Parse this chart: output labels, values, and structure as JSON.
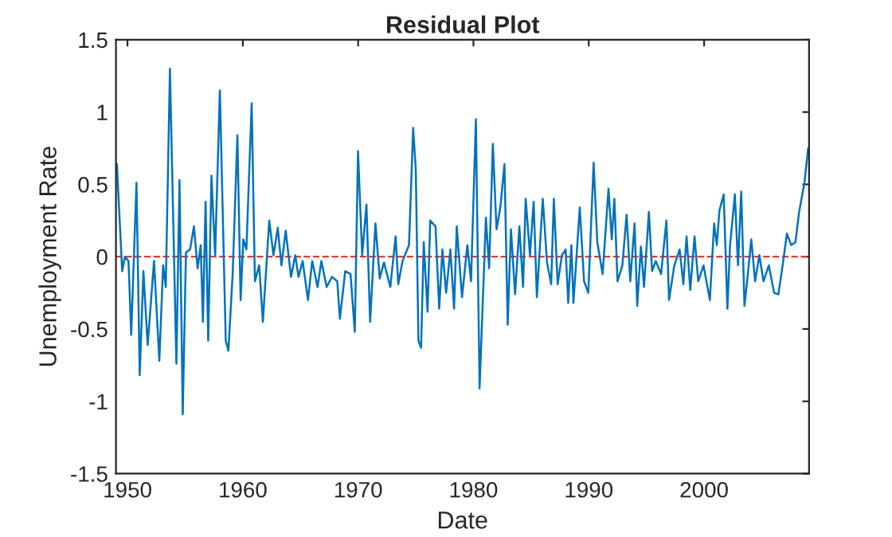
{
  "chart_data": {
    "type": "line",
    "title": "Residual Plot",
    "xlabel": "Date",
    "ylabel": "Unemployment Rate",
    "xlim": [
      1949,
      2009.1
    ],
    "xticks": [
      1950,
      1960,
      1970,
      1980,
      1990,
      2000
    ],
    "ylim": [
      -1.5,
      1.5
    ],
    "yticks": [
      -1.5,
      -1,
      -0.5,
      0,
      0.5,
      1,
      1.5
    ],
    "grid": false,
    "marker": "none",
    "line_style": "solid",
    "ref_lines": [
      {
        "axis": "y",
        "value": 0,
        "color": "#e03c31",
        "line_style": "dashed"
      }
    ],
    "series": [
      {
        "color": "#0072bd",
        "x": [
          1949.08,
          1949.54,
          1949.77,
          1950.09,
          1950.32,
          1950.78,
          1951.06,
          1951.38,
          1951.75,
          1952.3,
          1952.76,
          1953.09,
          1953.32,
          1953.68,
          1954.24,
          1954.51,
          1954.79,
          1955.07,
          1955.43,
          1955.76,
          1956.08,
          1956.35,
          1956.54,
          1956.77,
          1957.0,
          1957.28,
          1957.6,
          1958.01,
          1958.52,
          1958.75,
          1959.12,
          1959.53,
          1959.81,
          1960.04,
          1960.31,
          1960.77,
          1961.05,
          1961.42,
          1961.74,
          1962.29,
          1962.66,
          1963.03,
          1963.35,
          1963.72,
          1964.18,
          1964.55,
          1964.83,
          1965.19,
          1965.65,
          1966.02,
          1966.48,
          1966.81,
          1967.27,
          1967.73,
          1968.19,
          1968.42,
          1968.88,
          1969.34,
          1969.71,
          1969.99,
          1970.35,
          1970.72,
          1971.04,
          1971.5,
          1971.87,
          1972.24,
          1972.79,
          1973.25,
          1973.48,
          1973.85,
          1974.41,
          1974.77,
          1975.0,
          1975.23,
          1975.46,
          1975.69,
          1976.02,
          1976.25,
          1976.71,
          1977.03,
          1977.31,
          1977.63,
          1978.0,
          1978.32,
          1978.55,
          1979.01,
          1979.47,
          1979.79,
          1980.21,
          1980.53,
          1981.08,
          1981.36,
          1981.68,
          1982.0,
          1982.33,
          1982.69,
          1982.97,
          1983.25,
          1983.61,
          1983.98,
          1984.3,
          1984.53,
          1984.9,
          1985.22,
          1985.5,
          1986.01,
          1986.38,
          1986.74,
          1986.97,
          1987.3,
          1987.67,
          1987.99,
          1988.22,
          1988.49,
          1988.67,
          1989.22,
          1989.59,
          1989.96,
          1990.42,
          1990.74,
          1991.2,
          1991.71,
          1991.99,
          1992.22,
          1992.49,
          1992.91,
          1993.28,
          1993.6,
          1993.97,
          1994.2,
          1994.52,
          1994.79,
          1995.21,
          1995.49,
          1995.81,
          1996.27,
          1996.73,
          1996.96,
          1997.42,
          1997.88,
          1998.2,
          1998.48,
          1998.8,
          1999.17,
          1999.49,
          1999.95,
          2000.5,
          2000.87,
          2001.1,
          2001.33,
          2001.7,
          2002.02,
          2002.25,
          2002.67,
          2002.94,
          2003.22,
          2003.5,
          2003.77,
          2004.09,
          2004.42,
          2004.79,
          2005.15,
          2005.61,
          2006.07,
          2006.44,
          2006.81,
          2007.18,
          2007.55,
          2007.92,
          2008.24,
          2008.7,
          2009.02
        ],
        "values": [
          0.64,
          -0.1,
          0,
          -0.03,
          -0.54,
          0.51,
          -0.82,
          -0.1,
          -0.61,
          -0.03,
          -0.72,
          -0.06,
          -0.21,
          1.3,
          -0.74,
          0.53,
          -1.09,
          0.03,
          0.05,
          0.21,
          -0.08,
          0.08,
          -0.45,
          0.38,
          -0.58,
          0.56,
          0.01,
          1.15,
          -0.58,
          -0.65,
          -0.12,
          0.84,
          -0.3,
          0.12,
          0.05,
          1.06,
          -0.17,
          -0.06,
          -0.45,
          0.25,
          0.01,
          0.2,
          -0.06,
          0.18,
          -0.14,
          0.01,
          -0.14,
          -0.03,
          -0.3,
          -0.03,
          -0.21,
          -0.03,
          -0.21,
          -0.14,
          -0.17,
          -0.43,
          -0.1,
          -0.12,
          -0.52,
          0.73,
          0.01,
          0.36,
          -0.45,
          0.23,
          -0.15,
          -0.04,
          -0.21,
          0.14,
          -0.19,
          -0.03,
          0.08,
          0.89,
          0.6,
          -0.58,
          -0.63,
          0.1,
          -0.38,
          0.25,
          0.21,
          -0.36,
          0.05,
          -0.25,
          0.05,
          -0.36,
          0.21,
          -0.28,
          0.08,
          -0.17,
          0.95,
          -0.91,
          0.27,
          -0.08,
          0.78,
          0.19,
          0.34,
          0.64,
          -0.47,
          0.19,
          -0.26,
          0.21,
          -0.21,
          0.4,
          0.01,
          0.38,
          -0.28,
          0.4,
          -0.04,
          -0.19,
          0.4,
          -0.19,
          0.01,
          0.05,
          -0.32,
          0.08,
          -0.32,
          0.34,
          -0.17,
          -0.25,
          0.65,
          0.1,
          -0.12,
          0.47,
          0.12,
          0.4,
          -0.17,
          -0.06,
          0.29,
          -0.17,
          0.23,
          -0.34,
          0.07,
          -0.21,
          0.31,
          -0.1,
          -0.03,
          -0.12,
          0.25,
          -0.3,
          -0.06,
          0.05,
          -0.19,
          0.14,
          -0.23,
          0.14,
          -0.17,
          -0.06,
          -0.3,
          0.23,
          0.08,
          0.32,
          0.43,
          -0.36,
          0.08,
          0.43,
          -0.06,
          0.45,
          -0.34,
          -0.14,
          0.12,
          -0.17,
          0.01,
          -0.17,
          -0.06,
          -0.25,
          -0.26,
          -0.06,
          0.16,
          0.08,
          0.1,
          0.31,
          0.51,
          0.75
        ]
      }
    ]
  }
}
